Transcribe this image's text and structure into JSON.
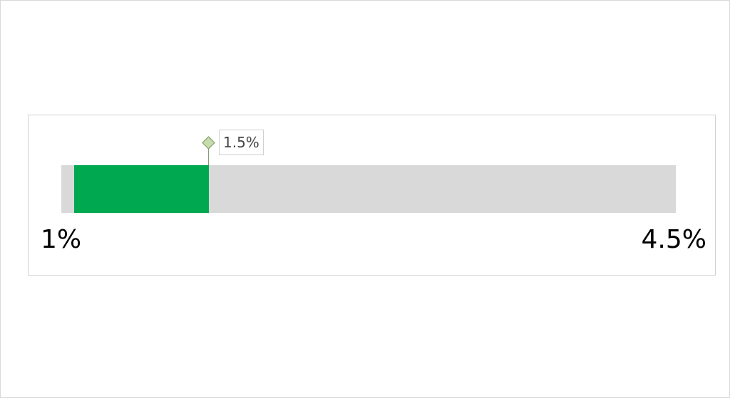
{
  "chart_data": {
    "type": "bar",
    "subtype": "progress-gauge",
    "min": 1,
    "max": 4.5,
    "min_label": "1%",
    "max_label": "4.5%",
    "value": 1.5,
    "value_label": "1.5%",
    "colors": {
      "fill": "#00a950",
      "track": "#d9d9d9",
      "marker": "#c5dcae"
    }
  }
}
